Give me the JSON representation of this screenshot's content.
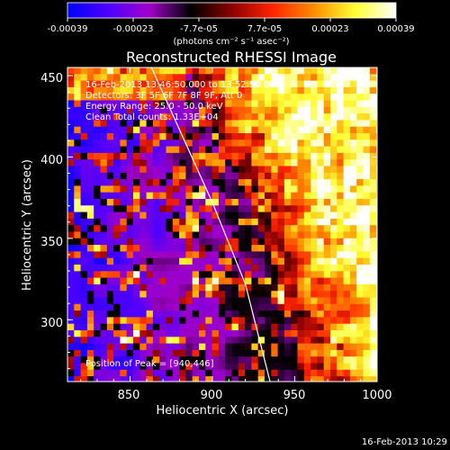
{
  "colorbar": {
    "tick_labels": [
      "-0.00039",
      "-0.00023",
      "-7.7e-05",
      "7.7e-05",
      "0.00023",
      "0.00039"
    ],
    "units": "(photons cm⁻² s⁻¹ asec⁻²)",
    "range": [
      -0.00039,
      0.00039
    ]
  },
  "info_lines": [
    "16-Feb-2013 13:46:50.000 to 13:52:50.000",
    "Detectors: 3F 5F 6F 7F 8F 9F, Att 0",
    "Energy Range: 25.0 - 50.0 keV",
    "Clean     Total counts: 1.33E+04"
  ],
  "peak_label": "Position of Peak = [940,446]",
  "footer_timestamp": "16-Feb-2013 10:29",
  "chart_data": {
    "type": "heatmap",
    "title": "Reconstructed RHESSI Image",
    "xlabel": "Heliocentric X (arcsec)",
    "ylabel": "Heliocentric Y (arcsec)",
    "xlim": [
      812,
      1000
    ],
    "ylim": [
      262,
      455
    ],
    "x_ticks": [
      850,
      900,
      950,
      1000
    ],
    "y_ticks": [
      300,
      350,
      400,
      450
    ],
    "x_tick_labels": [
      "850",
      "900",
      "950",
      "1000"
    ],
    "y_tick_labels": [
      "300",
      "350",
      "400",
      "450"
    ],
    "peak_position": [
      940,
      446
    ],
    "limb_curve": [
      [
        863,
        455
      ],
      [
        900,
        372
      ],
      [
        920,
        322
      ],
      [
        935,
        262
      ]
    ],
    "colormap": [
      "#0000ff",
      "#4d00ff",
      "#a000c8",
      "#000000",
      "#8b0000",
      "#ff2400",
      "#ff8c00",
      "#ffff32",
      "#ffffff"
    ]
  }
}
